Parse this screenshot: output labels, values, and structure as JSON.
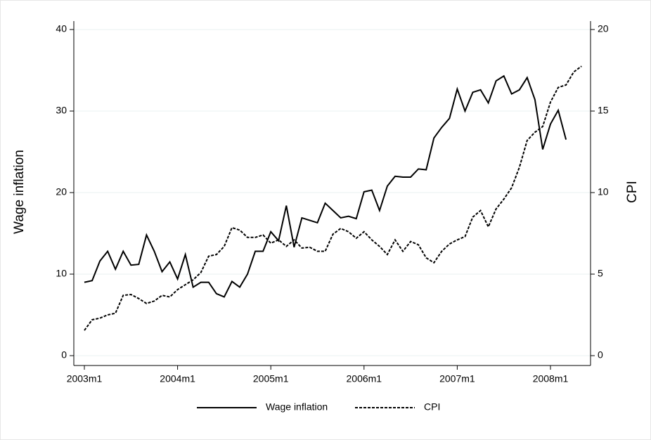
{
  "chart_data": {
    "type": "line",
    "categories": [
      "2003m1",
      null,
      null,
      null,
      null,
      null,
      null,
      null,
      null,
      null,
      null,
      null,
      "2004m1",
      null,
      null,
      null,
      null,
      null,
      null,
      null,
      null,
      null,
      null,
      null,
      "2005m1",
      null,
      null,
      null,
      null,
      null,
      null,
      null,
      null,
      null,
      null,
      null,
      "2006m1",
      null,
      null,
      null,
      null,
      null,
      null,
      null,
      null,
      null,
      null,
      null,
      "2007m1",
      null,
      null,
      null,
      null,
      null,
      null,
      null,
      null,
      null,
      null,
      null,
      "2008m1",
      null,
      null,
      null,
      null
    ],
    "y_label": "Wage inflation",
    "y2_label": "CPI",
    "ylim": [
      0,
      40
    ],
    "yticks": [
      0,
      10,
      20,
      30,
      40
    ],
    "y2lim": [
      0,
      20
    ],
    "y2ticks": [
      0,
      5,
      10,
      15,
      20
    ],
    "grid": true,
    "legend": "bottom",
    "series": [
      {
        "name": "Wage inflation",
        "color": "#000000",
        "style": "solid",
        "values": [
          9.0,
          9.2,
          11.6,
          12.8,
          10.6,
          12.8,
          11.1,
          11.2,
          14.8,
          12.8,
          10.3,
          11.5,
          9.4,
          12.4,
          8.4,
          9.0,
          9.0,
          7.6,
          7.2,
          9.1,
          8.4,
          10.0,
          12.8,
          12.8,
          15.2,
          14.1,
          18.4,
          13.3,
          16.9,
          16.6,
          16.3,
          18.7,
          17.8,
          16.9,
          17.1,
          16.8,
          20.1,
          20.3,
          17.8,
          20.8,
          22.0,
          21.9,
          21.9,
          22.9,
          22.8,
          26.7,
          28.0,
          29.1,
          32.7,
          30.0,
          32.3,
          32.6,
          31.0,
          33.7,
          34.3,
          32.1,
          32.6,
          34.1,
          31.4,
          25.3,
          28.4,
          30.1,
          26.5,
          null,
          null
        ]
      },
      {
        "name": "CPI",
        "color": "#000000",
        "style": "dashed",
        "axis": "y2",
        "values": [
          1.55,
          2.2,
          2.3,
          2.5,
          2.6,
          3.7,
          3.75,
          3.5,
          3.2,
          3.35,
          3.7,
          3.6,
          4.05,
          4.35,
          4.65,
          5.1,
          6.1,
          6.2,
          6.7,
          7.85,
          7.7,
          7.25,
          7.25,
          7.4,
          6.9,
          7.1,
          6.7,
          7.1,
          6.6,
          6.65,
          6.4,
          6.4,
          7.45,
          7.8,
          7.6,
          7.2,
          7.6,
          7.1,
          6.7,
          6.2,
          7.1,
          6.4,
          7.0,
          6.8,
          6.0,
          5.7,
          6.4,
          6.85,
          7.1,
          7.3,
          8.5,
          8.9,
          7.9,
          9.0,
          9.6,
          10.3,
          11.55,
          13.2,
          13.7,
          14.05,
          15.55,
          16.45,
          16.6,
          17.4,
          17.75
        ]
      }
    ]
  }
}
